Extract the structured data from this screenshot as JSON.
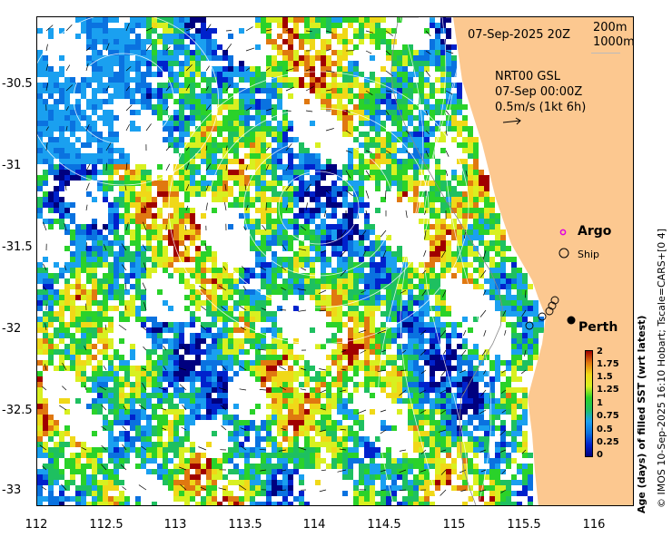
{
  "header": {
    "sst_time": "07-Sep-2025 20Z",
    "depth_contour_1": "200m",
    "depth_contour_2": "1000m"
  },
  "currents": {
    "product": "NRT00 GSL",
    "time": "07-Sep 00:00Z",
    "scale_label": "0.5m/s (1kt 6h)"
  },
  "legend": {
    "argo_label": "Argo",
    "ship_label": "Ship",
    "argo_color": "#e000e0"
  },
  "place": {
    "city": "Perth",
    "lon": 115.86,
    "lat": -31.95
  },
  "axes": {
    "x_ticks": [
      "112",
      "112.5",
      "113",
      "113.5",
      "114",
      "114.5",
      "115",
      "115.5",
      "116"
    ],
    "y_ticks": [
      "-30.5",
      "-31",
      "-31.5",
      "-32",
      "-32.5",
      "-33"
    ],
    "x_range": [
      112,
      116.2
    ],
    "y_range": [
      -30.1,
      -33.1
    ]
  },
  "colorbar": {
    "title": "Age (days) of filled SST (wrt latest)",
    "tick_labels": [
      "2",
      "1.75",
      "1.5",
      "1.25",
      "1",
      "0.75",
      "0.5",
      "0.25",
      "0"
    ],
    "colors": [
      "#00007f",
      "#0022cc",
      "#0a72e0",
      "#1aa0f0",
      "#1ec060",
      "#2ad22a",
      "#d8f020",
      "#f0d818",
      "#e07810",
      "#a00000"
    ],
    "range": [
      0,
      2
    ]
  },
  "credit": "© IMOS 10-Sep-2025 16:10 Hobart; Tscale=CARS+[0 4]",
  "land_color": "#fcc890"
}
